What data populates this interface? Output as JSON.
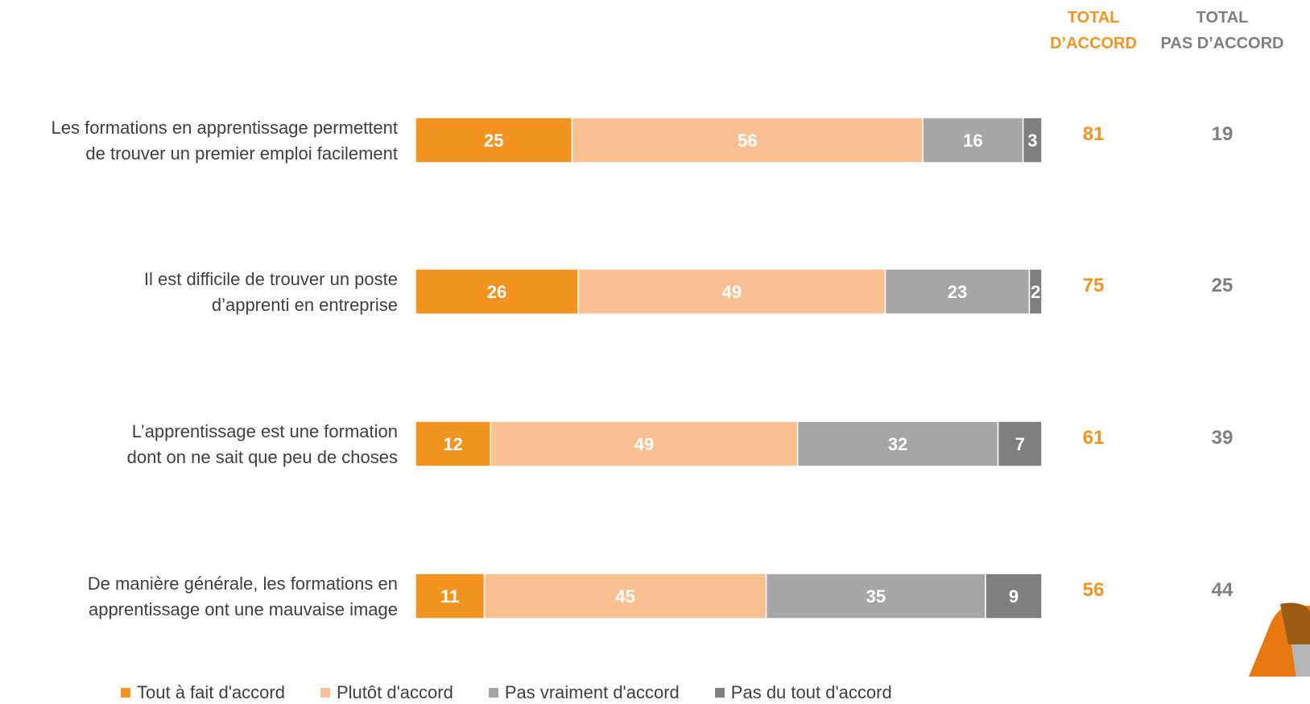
{
  "chart_data": {
    "type": "bar",
    "orientation": "horizontal",
    "stacked": true,
    "xlim": [
      0,
      100
    ],
    "grid": false,
    "legend_position": "bottom",
    "categories": [
      "Les formations en apprentissage permettent de trouver un premier emploi facilement",
      "Il est difficile de trouver un poste d’apprenti en entreprise",
      "L’apprentissage est une formation dont on ne sait que peu de choses",
      "De manière générale, les formations en apprentissage ont une mauvaise image"
    ],
    "category_lines": [
      [
        "Les formations en apprentissage permettent",
        "de trouver un premier emploi facilement"
      ],
      [
        "Il est difficile de trouver un poste",
        "d’apprenti en entreprise"
      ],
      [
        "L’apprentissage est une formation",
        "dont on ne sait que peu de choses"
      ],
      [
        "De manière générale, les formations en",
        "apprentissage ont une mauvaise image"
      ]
    ],
    "series": [
      {
        "name": "Tout à fait d'accord",
        "values": [
          25,
          26,
          12,
          11
        ],
        "color": "#F39320",
        "label_color": "#FFFFFF"
      },
      {
        "name": "Plutôt d'accord",
        "values": [
          56,
          49,
          49,
          45
        ],
        "color": "#F9C092",
        "label_color": "#FFFFFF"
      },
      {
        "name": "Pas vraiment d'accord",
        "values": [
          16,
          23,
          32,
          35
        ],
        "color": "#A6A6A6",
        "label_color": "#FFFFFF"
      },
      {
        "name": "Pas du tout d'accord",
        "values": [
          3,
          2,
          7,
          9
        ],
        "color": "#7F7F7F",
        "label_color": "#FFFFFF"
      }
    ],
    "totals": {
      "agree": {
        "header": [
          "TOTAL",
          "D’ACCORD"
        ],
        "values": [
          81,
          75,
          61,
          56
        ],
        "color": "#F39320"
      },
      "disagree": {
        "header": [
          "TOTAL",
          "PAS D’ACCORD"
        ],
        "values": [
          19,
          25,
          39,
          44
        ],
        "color": "#7F7F7F"
      }
    }
  }
}
